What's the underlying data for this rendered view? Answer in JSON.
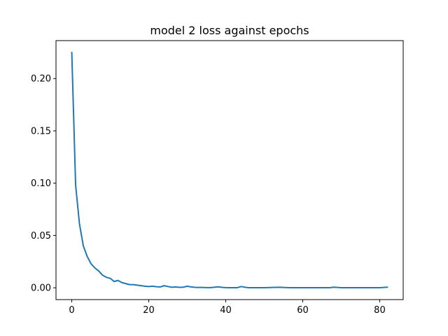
{
  "chart_data": {
    "type": "line",
    "title": "model 2 loss against epochs",
    "xlabel": "",
    "ylabel": "",
    "xlim": [
      -4.1,
      86.1
    ],
    "ylim": [
      -0.0113,
      0.2363
    ],
    "xticks": [
      0,
      20,
      40,
      60,
      80
    ],
    "yticks": [
      0.0,
      0.05,
      0.1,
      0.15,
      0.2
    ],
    "xtick_labels": [
      "0",
      "20",
      "40",
      "60",
      "80"
    ],
    "ytick_labels": [
      "0.00",
      "0.05",
      "0.10",
      "0.15",
      "0.20"
    ],
    "grid": false,
    "color": "#1f77b4",
    "series": [
      {
        "x": [
          0,
          1,
          2,
          3,
          4,
          5,
          6,
          7,
          8,
          9,
          10,
          11,
          12,
          13,
          14,
          15,
          16,
          17,
          18,
          19,
          20,
          21,
          22,
          23,
          24,
          25,
          26,
          27,
          28,
          29,
          30,
          31,
          32,
          33,
          34,
          35,
          36,
          37,
          38,
          39,
          40,
          41,
          42,
          43,
          44,
          45,
          46,
          47,
          48,
          49,
          50,
          51,
          52,
          53,
          54,
          55,
          56,
          57,
          58,
          59,
          60,
          61,
          62,
          63,
          64,
          65,
          66,
          67,
          68,
          69,
          70,
          71,
          72,
          73,
          74,
          75,
          76,
          77,
          78,
          79,
          80,
          81,
          82
        ],
        "values": [
          0.225,
          0.098,
          0.061,
          0.04,
          0.03,
          0.023,
          0.019,
          0.016,
          0.012,
          0.01,
          0.009,
          0.006,
          0.007,
          0.005,
          0.004,
          0.003,
          0.003,
          0.0025,
          0.002,
          0.0015,
          0.0012,
          0.0015,
          0.001,
          0.0008,
          0.002,
          0.0012,
          0.0005,
          0.0008,
          0.0004,
          0.0006,
          0.0015,
          0.0008,
          0.0004,
          0.0003,
          0.0003,
          0.0002,
          0.0002,
          0.0005,
          0.0009,
          0.0004,
          0.0002,
          0.0001,
          0.0001,
          0.0001,
          0.0012,
          0.0005,
          0.0001,
          0.0001,
          0.0001,
          0.0001,
          0.0001,
          0.0002,
          0.0003,
          0.0004,
          0.0005,
          0.0003,
          0.0002,
          0.0001,
          0.0001,
          0.0001,
          0.0001,
          0.0001,
          0.0001,
          0.0001,
          0.0001,
          0.0001,
          0.0001,
          0.0001,
          0.0006,
          0.0003,
          0.0001,
          0.0001,
          0.0001,
          0.0001,
          0.0001,
          0.0001,
          0.0001,
          0.0001,
          0.0001,
          0.0001,
          0.0001,
          0.0003,
          0.0006
        ]
      }
    ]
  }
}
